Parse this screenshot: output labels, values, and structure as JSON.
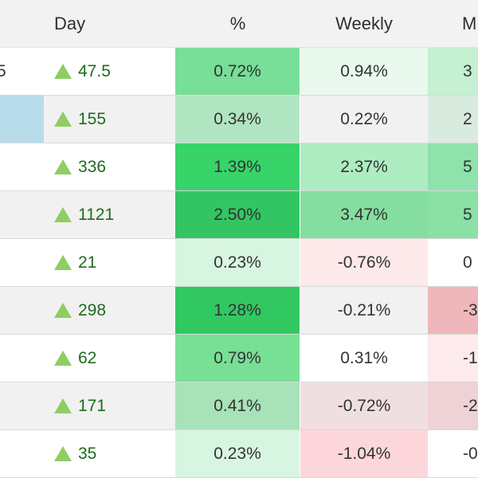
{
  "headers": {
    "day": "Day",
    "pct": "%",
    "weekly": "Weekly",
    "monthly": "M"
  },
  "rows": [
    {
      "c0": "5",
      "day": "47.5",
      "pct": "0.72%",
      "wk": "0.94%",
      "m": "3",
      "pct_bg": "#77df97",
      "wk_bg": "#e9f9ee",
      "m_bg": "#c6f0d2"
    },
    {
      "c0": "",
      "day": "155",
      "pct": "0.34%",
      "wk": "0.22%",
      "m": "2",
      "pct_bg": "#b1e5c1",
      "wk_bg": "#f1f1f1",
      "m_bg": "#d9eadf"
    },
    {
      "c0": "",
      "day": "336",
      "pct": "1.39%",
      "wk": "2.37%",
      "m": "5",
      "pct_bg": "#38d46a",
      "wk_bg": "#aeedc2",
      "m_bg": "#8fe2ab"
    },
    {
      "c0": "",
      "day": "1121",
      "pct": "2.50%",
      "wk": "3.47%",
      "m": "5",
      "pct_bg": "#33c564",
      "wk_bg": "#85dea0",
      "m_bg": "#8ae0a5"
    },
    {
      "c0": "",
      "day": "21",
      "pct": "0.23%",
      "wk": "-0.76%",
      "m": "0",
      "pct_bg": "#d8f5e1",
      "wk_bg": "#fde8ea",
      "m_bg": "#ffffff"
    },
    {
      "c0": "",
      "day": "298",
      "pct": "1.28%",
      "wk": "-0.21%",
      "m": "-3",
      "pct_bg": "#31c862",
      "wk_bg": "#f1f1f1",
      "m_bg": "#efb7bb"
    },
    {
      "c0": "",
      "day": "62",
      "pct": "0.79%",
      "wk": "0.31%",
      "m": "-1",
      "pct_bg": "#77e095",
      "wk_bg": "#ffffff",
      "m_bg": "#fdeaec"
    },
    {
      "c0": "",
      "day": "171",
      "pct": "0.41%",
      "wk": "-0.72%",
      "m": "-2",
      "pct_bg": "#a7e2b8",
      "wk_bg": "#efdfe1",
      "m_bg": "#efd2d5"
    },
    {
      "c0": "",
      "day": "35",
      "pct": "0.23%",
      "wk": "-1.04%",
      "m": "-0",
      "pct_bg": "#d8f5e1",
      "wk_bg": "#fcd6da",
      "m_bg": "#ffffff"
    }
  ],
  "colors": {
    "up_arrow": "#8fce63",
    "up_text": "#1e6b1e",
    "blue_chip": "#b8dce9"
  }
}
